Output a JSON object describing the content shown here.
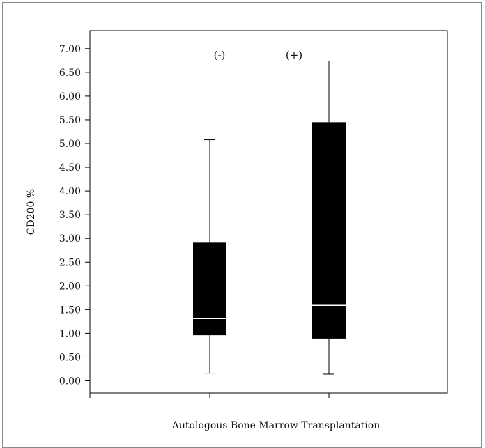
{
  "chart_data": {
    "type": "boxplot",
    "title": "",
    "xlabel": "Autologous Bone Marrow Transplantation",
    "ylabel": "CD200 %",
    "ylim": [
      0,
      7.25
    ],
    "yticks": [
      "0.00",
      "0.50",
      "1.00",
      "1.50",
      "2.00",
      "2.50",
      "3.00",
      "3.50",
      "4.00",
      "4.50",
      "5.00",
      "5.50",
      "6.00",
      "6.50",
      "7.00"
    ],
    "grid": false,
    "legend": "none",
    "groups": [
      {
        "label": "(-)",
        "min": 0.16,
        "q1": 0.96,
        "median": 1.31,
        "q3": 2.91,
        "max": 5.08
      },
      {
        "label": "(+)",
        "min": 0.14,
        "q1": 0.89,
        "median": 1.59,
        "q3": 5.45,
        "max": 6.74
      }
    ],
    "colors": {
      "box": "#000000",
      "median": "#ffffff",
      "axis": "#000000"
    }
  }
}
